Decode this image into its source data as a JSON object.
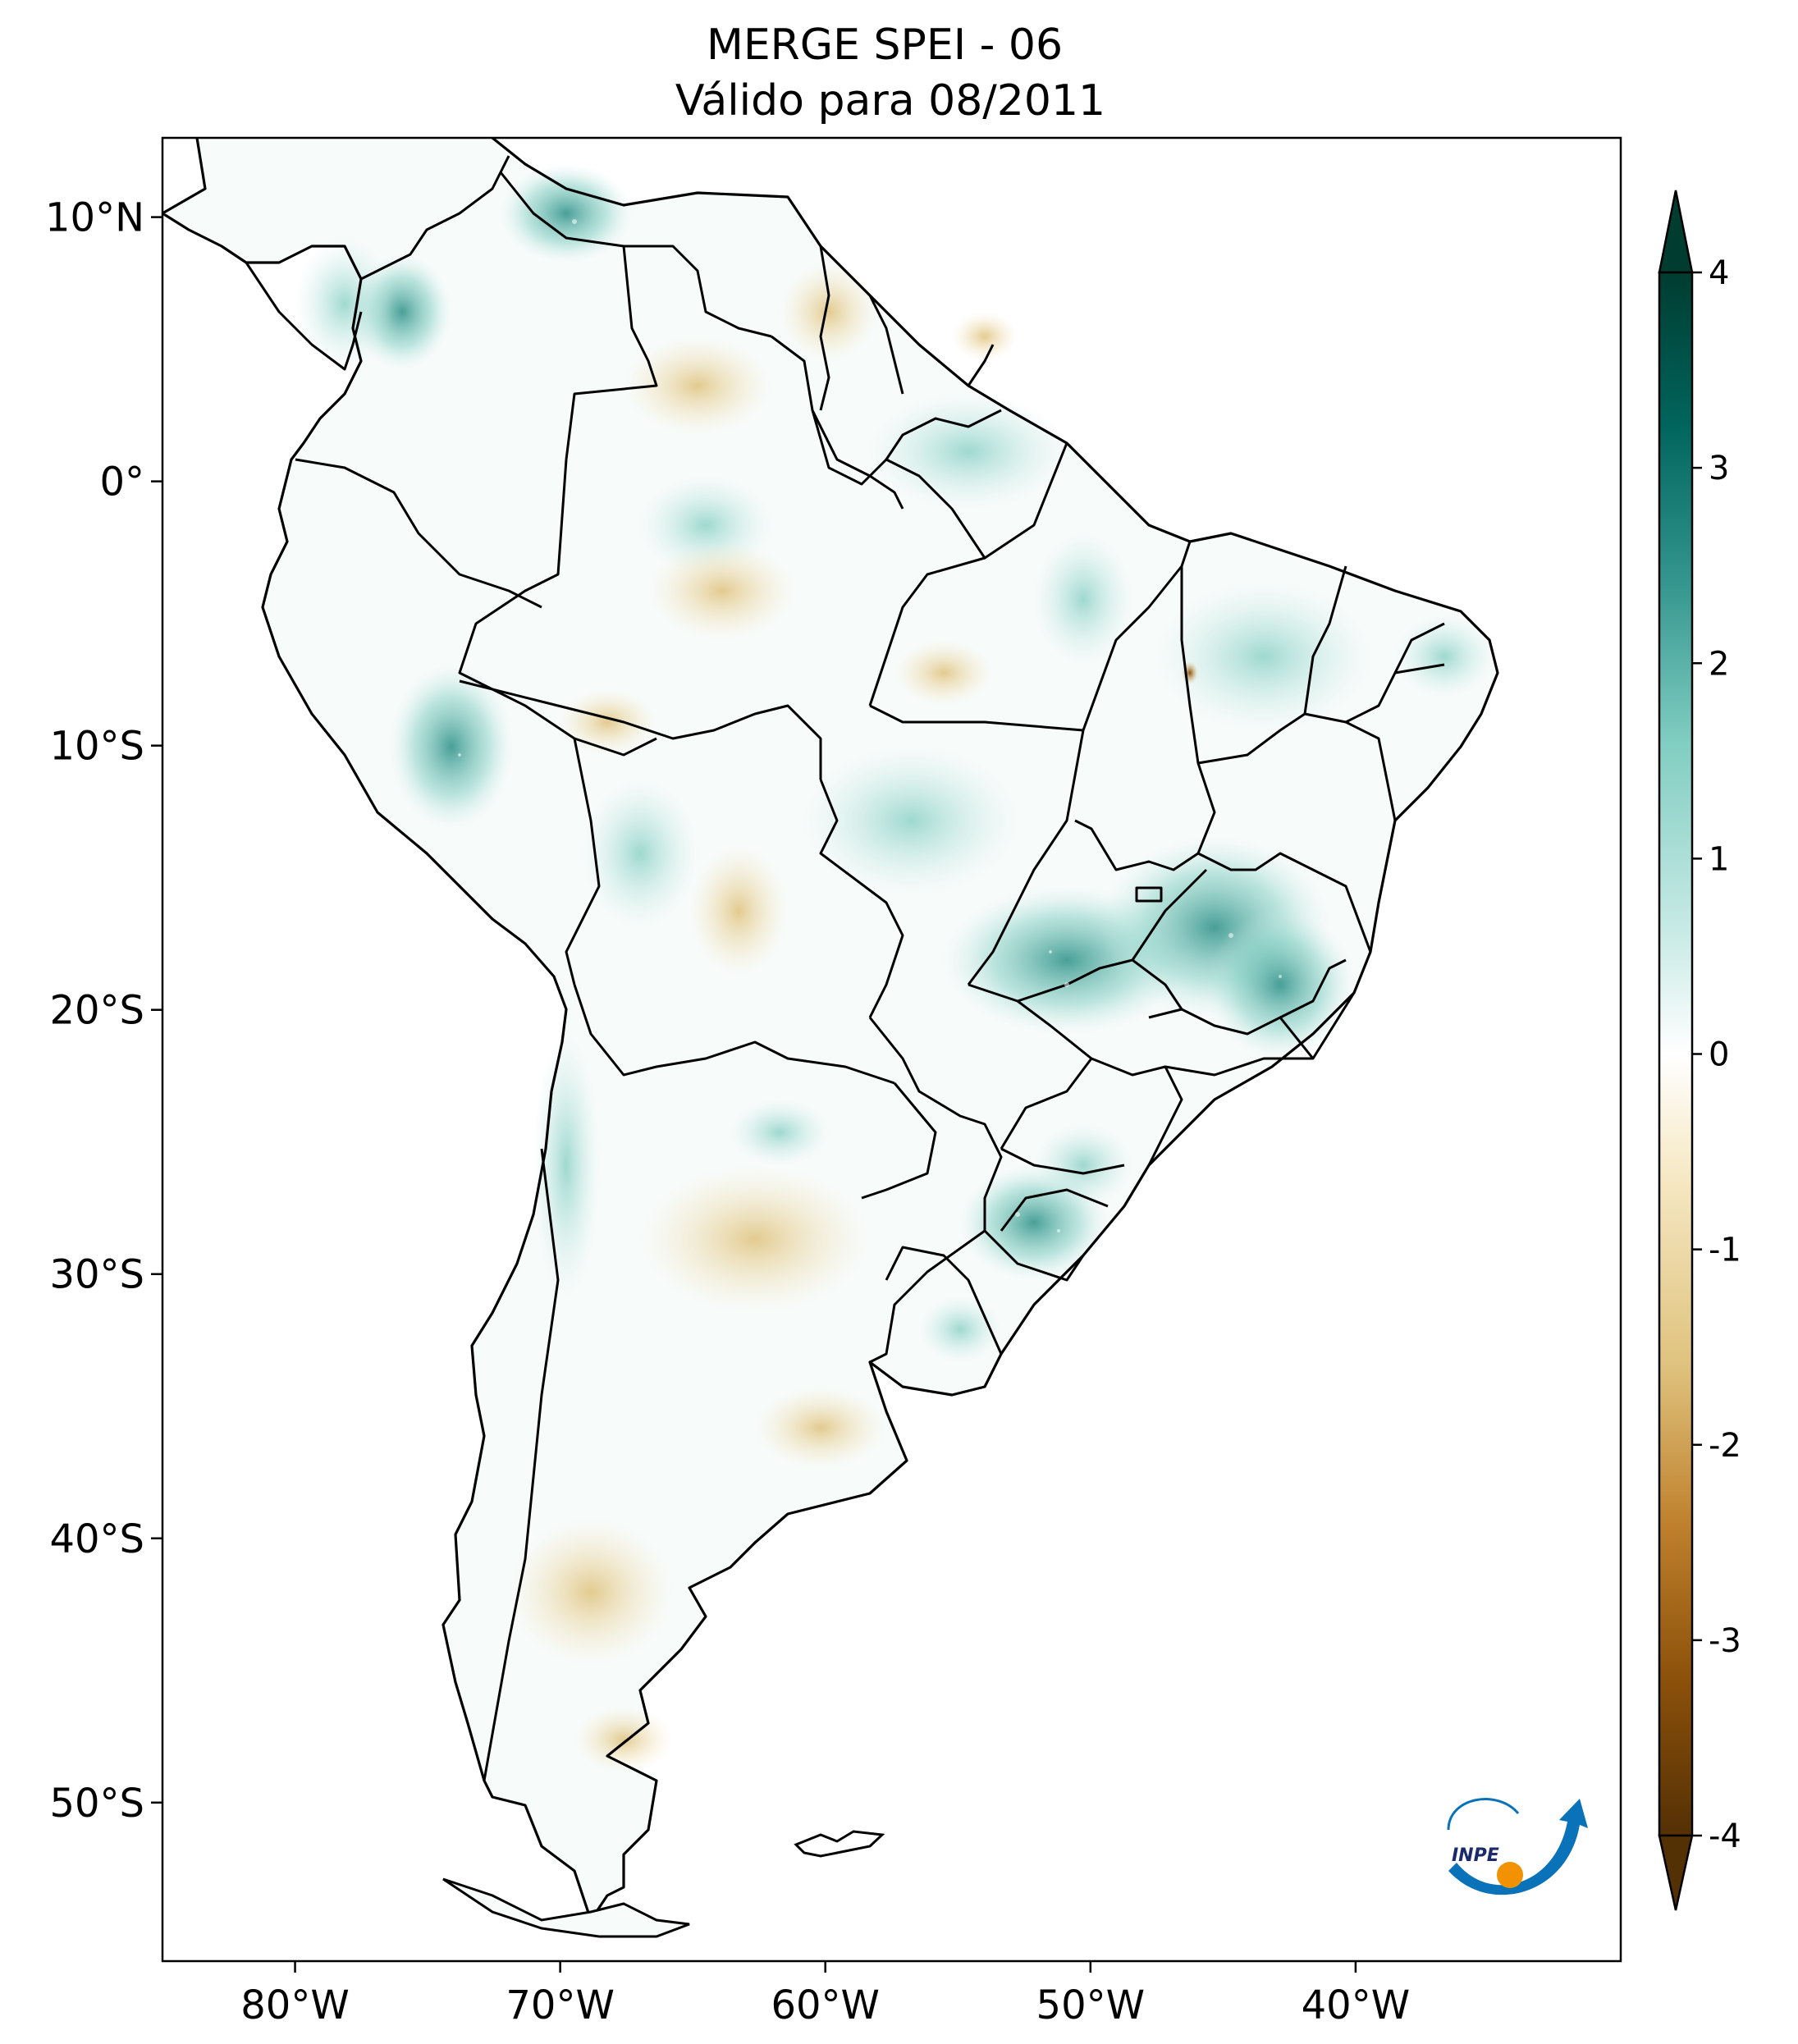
{
  "title": {
    "line1": "MERGE   SPEI - 06",
    "line2": "Válido para 08/2011"
  },
  "map": {
    "lon_range": [
      -85,
      -30
    ],
    "lat_range": [
      -56,
      13
    ],
    "lon_ticks": [
      {
        "value": -80,
        "label": "80°W"
      },
      {
        "value": -70,
        "label": "70°W"
      },
      {
        "value": -60,
        "label": "60°W"
      },
      {
        "value": -50,
        "label": "50°W"
      },
      {
        "value": -40,
        "label": "40°W"
      }
    ],
    "lat_ticks": [
      {
        "value": 10,
        "label": "10°N"
      },
      {
        "value": 0,
        "label": "0°"
      },
      {
        "value": -10,
        "label": "10°S"
      },
      {
        "value": -20,
        "label": "20°S"
      },
      {
        "value": -30,
        "label": "30°S"
      },
      {
        "value": -40,
        "label": "40°S"
      },
      {
        "value": -50,
        "label": "50°S"
      }
    ]
  },
  "colorbar": {
    "range": [
      -4,
      4
    ],
    "ticks": [
      {
        "value": 4,
        "label": "4"
      },
      {
        "value": 3,
        "label": "3"
      },
      {
        "value": 2,
        "label": "2"
      },
      {
        "value": 1,
        "label": "1"
      },
      {
        "value": 0,
        "label": "0"
      },
      {
        "value": -1,
        "label": "-1"
      },
      {
        "value": -2,
        "label": "-2"
      },
      {
        "value": -3,
        "label": "-3"
      },
      {
        "value": -4,
        "label": "-4"
      }
    ],
    "colors": [
      "#543005",
      "#8c510a",
      "#bf812d",
      "#dfc27d",
      "#f6e8c3",
      "#ffffff",
      "#c7eae5",
      "#80cdc1",
      "#35978f",
      "#01665e",
      "#003c30"
    ]
  },
  "logo": {
    "text": "INPE",
    "colors": {
      "blue": "#0a72b8",
      "orange": "#f39200"
    }
  }
}
